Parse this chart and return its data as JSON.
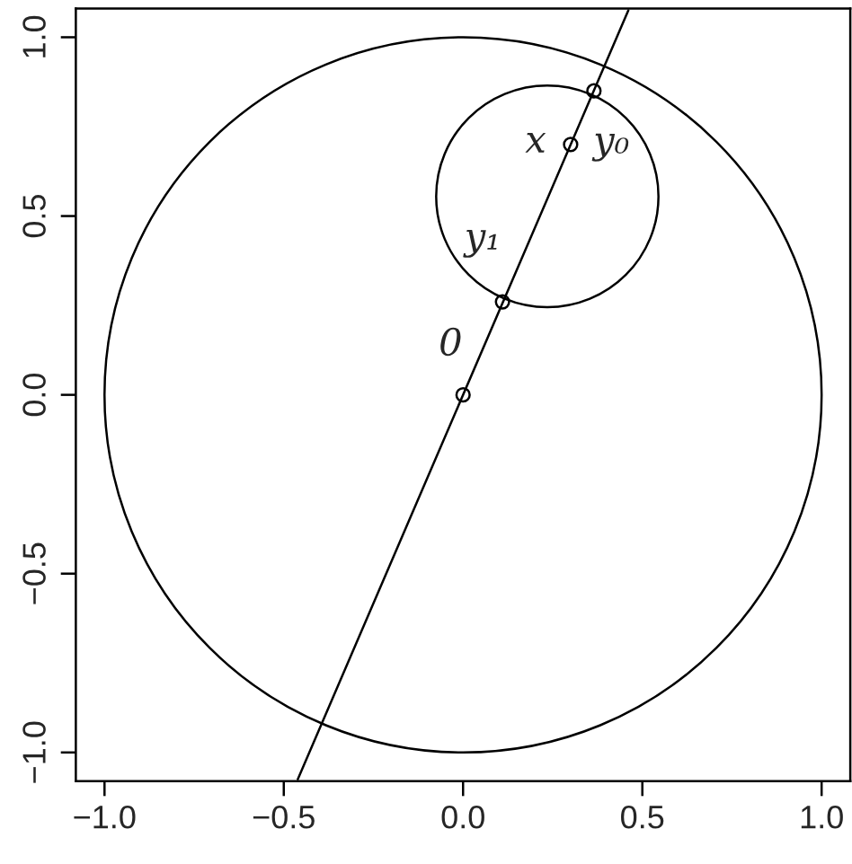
{
  "chart_data": {
    "type": "line",
    "xlim": [
      -1.08,
      1.08
    ],
    "ylim": [
      -1.08,
      1.08
    ],
    "xticks": [
      {
        "value": -1.0,
        "label": "−1.0"
      },
      {
        "value": -0.5,
        "label": "−0.5"
      },
      {
        "value": 0.0,
        "label": "0.0"
      },
      {
        "value": 0.5,
        "label": "0.5"
      },
      {
        "value": 1.0,
        "label": "1.0"
      }
    ],
    "yticks": [
      {
        "value": -1.0,
        "label": "−1.0"
      },
      {
        "value": -0.5,
        "label": "−0.5"
      },
      {
        "value": 0.0,
        "label": "0.0"
      },
      {
        "value": 0.5,
        "label": "0.5"
      },
      {
        "value": 1.0,
        "label": "1.0"
      }
    ],
    "grid": false,
    "series": [
      {
        "type": "line",
        "color": "#000000",
        "x": [
          -0.461,
          0.461
        ],
        "values": [
          -1.075,
          1.075
        ]
      },
      {
        "type": "scatter",
        "color": "#000000",
        "marker": "circle",
        "x": [
          0,
          0.11,
          0.3,
          0.365
        ],
        "values": [
          0,
          0.26,
          0.7,
          0.85
        ],
        "value_labels": [
          "0",
          "y₁",
          "x",
          "y₀"
        ]
      }
    ]
  }
}
